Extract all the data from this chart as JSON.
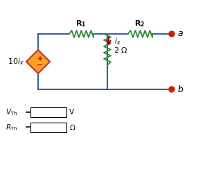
{
  "bg_color": "#ffffff",
  "circuit_color": "#1a4fa0",
  "resistor_color": "#2d8c2d",
  "diamond_fill": "#f5a623",
  "diamond_edge": "#cc3333",
  "arrow_color": "#8b0000",
  "terminal_color": "#cc2200",
  "text_color": "#000000",
  "figsize": [
    2.99,
    2.44
  ],
  "dpi": 100
}
